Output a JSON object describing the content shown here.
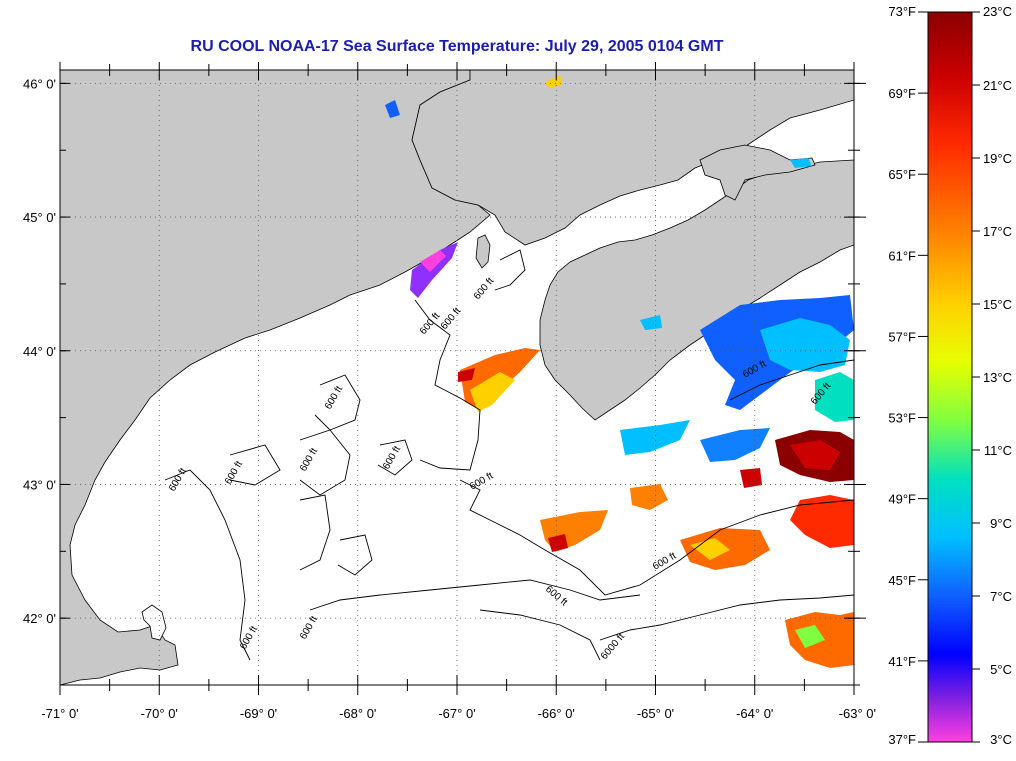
{
  "title": "RU COOL  NOAA-17  Sea Surface Temperature:  July 29, 2005 0104 GMT",
  "lat_ticks": [
    {
      "value": 46,
      "label": "46° 0'"
    },
    {
      "value": 45,
      "label": "45° 0'"
    },
    {
      "value": 44,
      "label": "44° 0'"
    },
    {
      "value": 43,
      "label": "43° 0'"
    },
    {
      "value": 42,
      "label": "42° 0'"
    }
  ],
  "lon_ticks": [
    {
      "value": -71,
      "label": "-71° 0'"
    },
    {
      "value": -70,
      "label": "-70° 0'"
    },
    {
      "value": -69,
      "label": "-69° 0'"
    },
    {
      "value": -68,
      "label": "-68° 0'"
    },
    {
      "value": -67,
      "label": "-67° 0'"
    },
    {
      "value": -66,
      "label": "-66° 0'"
    },
    {
      "value": -65,
      "label": "-65° 0'"
    },
    {
      "value": -64,
      "label": "-64° 0'"
    },
    {
      "value": -63,
      "label": "-63° 0'"
    }
  ],
  "extent": {
    "lon_min": -71,
    "lon_max": -63,
    "lat_min": 41.5,
    "lat_max": 46.1
  },
  "colorbar": {
    "fahrenheit": [
      "73°F",
      "69°F",
      "65°F",
      "61°F",
      "57°F",
      "53°F",
      "49°F",
      "45°F",
      "41°F",
      "37°F"
    ],
    "celsius": [
      "23°C",
      "21°C",
      "19°C",
      "17°C",
      "15°C",
      "13°C",
      "11°C",
      "9°C",
      "7°C",
      "5°C",
      "3°C"
    ],
    "stops": [
      "#8b0000",
      "#cc0000",
      "#ff2a00",
      "#ff8000",
      "#ffd000",
      "#e6ff00",
      "#80ff40",
      "#00e0c0",
      "#00bfff",
      "#1060ff",
      "#0000ff",
      "#8020e0",
      "#ff40e0"
    ]
  },
  "isobath_label": "600 ft",
  "isobath_label_alt": "6000 ft",
  "colors": {
    "land": "#c8c8c8",
    "title": "#1c1cb0",
    "grid": "#555555"
  }
}
